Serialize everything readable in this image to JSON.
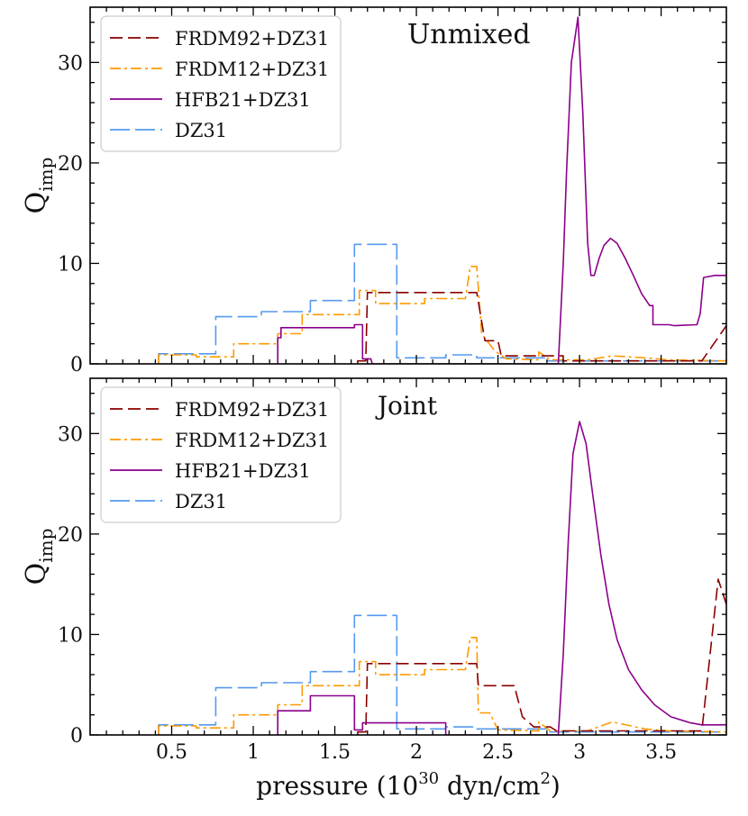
{
  "chart_data": {
    "type": "line",
    "xlabel": "pressure (10",
    "xlabel_exp": "30",
    "xlabel_unit": " dyn/cm",
    "xlabel_unit_exp": "2",
    "xlabel_close": ")",
    "ylabel_main": "Q",
    "ylabel_sub": "imp",
    "xlim": [
      0.0,
      3.9
    ],
    "ylim": [
      0,
      35.5
    ],
    "xticks": [
      0.5,
      1,
      1.5,
      2,
      2.5,
      3,
      3.5
    ],
    "xtick_labels": [
      "0.5",
      "1",
      "1.5",
      "2",
      "2.5",
      "3",
      "3.5"
    ],
    "yticks": [
      0,
      10,
      20,
      30
    ],
    "ytick_labels": [
      "0",
      "10",
      "20",
      "30"
    ],
    "styles": {
      "FRDM92+DZ31": {
        "color": "#8b0000",
        "dash": "14 6"
      },
      "FRDM12+DZ31": {
        "color": "#ff9900",
        "dash": "12 4 3 4"
      },
      "HFB21+DZ31": {
        "color": "#8b008b",
        "dash": ""
      },
      "DZ31": {
        "color": "#5599ee",
        "dash": "22 6"
      }
    },
    "panels": [
      {
        "title": "Unmixed",
        "legend": [
          "FRDM92+DZ31",
          "FRDM12+DZ31",
          "HFB21+DZ31",
          "DZ31"
        ],
        "series": [
          {
            "name": "DZ31",
            "points": [
              [
                0.42,
                0
              ],
              [
                0.42,
                1.0
              ],
              [
                0.77,
                1.0
              ],
              [
                0.77,
                4.7
              ],
              [
                1.05,
                4.7
              ],
              [
                1.05,
                5.2
              ],
              [
                1.35,
                5.2
              ],
              [
                1.35,
                6.3
              ],
              [
                1.62,
                6.3
              ],
              [
                1.62,
                11.9
              ],
              [
                1.88,
                11.9
              ],
              [
                1.88,
                0.6
              ],
              [
                2.18,
                0.6
              ],
              [
                2.18,
                0.9
              ],
              [
                2.37,
                0.9
              ],
              [
                2.37,
                0.6
              ],
              [
                2.8,
                0.6
              ],
              [
                2.8,
                0.3
              ],
              [
                3.9,
                0.3
              ]
            ]
          },
          {
            "name": "FRDM12+DZ31",
            "points": [
              [
                0.42,
                0
              ],
              [
                0.42,
                0.9
              ],
              [
                0.65,
                0.9
              ],
              [
                0.65,
                0.7
              ],
              [
                0.88,
                0.7
              ],
              [
                0.88,
                2.0
              ],
              [
                1.15,
                2.0
              ],
              [
                1.15,
                3.0
              ],
              [
                1.3,
                3.0
              ],
              [
                1.3,
                4.9
              ],
              [
                1.65,
                4.9
              ],
              [
                1.65,
                7.3
              ],
              [
                1.75,
                7.3
              ],
              [
                1.75,
                6.0
              ],
              [
                2.05,
                6.0
              ],
              [
                2.05,
                6.5
              ],
              [
                2.3,
                6.5
              ],
              [
                2.33,
                9.7
              ],
              [
                2.37,
                9.7
              ],
              [
                2.4,
                3.0
              ],
              [
                2.48,
                1.3
              ],
              [
                2.55,
                0.5
              ],
              [
                2.75,
                0.4
              ],
              [
                2.75,
                1.2
              ],
              [
                2.82,
                0.4
              ],
              [
                3.05,
                0.4
              ],
              [
                3.2,
                0.8
              ],
              [
                3.4,
                0.6
              ],
              [
                3.55,
                0.4
              ],
              [
                3.9,
                0.3
              ]
            ]
          },
          {
            "name": "FRDM92+DZ31",
            "points": [
              [
                1.64,
                0
              ],
              [
                1.64,
                0.3
              ],
              [
                1.69,
                0.3
              ],
              [
                1.7,
                7.1
              ],
              [
                2.37,
                7.1
              ],
              [
                2.42,
                2.3
              ],
              [
                2.5,
                2.3
              ],
              [
                2.52,
                0.8
              ],
              [
                2.9,
                0.8
              ],
              [
                2.9,
                0.3
              ],
              [
                3.75,
                0.3
              ],
              [
                3.9,
                3.8
              ]
            ]
          },
          {
            "name": "HFB21+DZ31",
            "points": [
              [
                1.15,
                0
              ],
              [
                1.15,
                2.6
              ],
              [
                1.17,
                2.6
              ],
              [
                1.17,
                3.6
              ],
              [
                1.62,
                3.6
              ],
              [
                1.62,
                3.9
              ],
              [
                1.67,
                3.9
              ],
              [
                1.67,
                0.5
              ],
              [
                1.72,
                0.5
              ],
              [
                1.73,
                0
              ],
              [
                2.87,
                0
              ],
              [
                2.9,
                10
              ],
              [
                2.92,
                19
              ],
              [
                2.95,
                30
              ],
              [
                2.99,
                34.5
              ],
              [
                3.02,
                25
              ],
              [
                3.05,
                12
              ],
              [
                3.07,
                8.8
              ],
              [
                3.09,
                8.8
              ],
              [
                3.12,
                10.5
              ],
              [
                3.15,
                11.8
              ],
              [
                3.19,
                12.5
              ],
              [
                3.23,
                12.0
              ],
              [
                3.28,
                10.5
              ],
              [
                3.33,
                8.8
              ],
              [
                3.38,
                7.0
              ],
              [
                3.43,
                5.8
              ],
              [
                3.45,
                5.8
              ],
              [
                3.45,
                3.9
              ],
              [
                3.55,
                3.9
              ],
              [
                3.58,
                3.8
              ],
              [
                3.72,
                3.9
              ],
              [
                3.74,
                5.0
              ],
              [
                3.76,
                8.6
              ],
              [
                3.83,
                8.8
              ],
              [
                3.9,
                8.8
              ]
            ]
          }
        ]
      },
      {
        "title": "Joint",
        "legend": [
          "FRDM92+DZ31",
          "FRDM12+DZ31",
          "HFB21+DZ31",
          "DZ31"
        ],
        "series": [
          {
            "name": "DZ31",
            "points": [
              [
                0.42,
                0
              ],
              [
                0.42,
                1.0
              ],
              [
                0.77,
                1.0
              ],
              [
                0.77,
                4.7
              ],
              [
                1.05,
                4.7
              ],
              [
                1.05,
                5.2
              ],
              [
                1.35,
                5.2
              ],
              [
                1.35,
                6.3
              ],
              [
                1.62,
                6.3
              ],
              [
                1.62,
                11.9
              ],
              [
                1.88,
                11.9
              ],
              [
                1.88,
                0.6
              ],
              [
                2.18,
                0.6
              ],
              [
                2.18,
                0.8
              ],
              [
                2.37,
                0.8
              ],
              [
                2.37,
                0.6
              ],
              [
                2.8,
                0.6
              ],
              [
                2.8,
                0.3
              ],
              [
                3.9,
                0.3
              ]
            ]
          },
          {
            "name": "FRDM12+DZ31",
            "points": [
              [
                0.42,
                0
              ],
              [
                0.42,
                0.9
              ],
              [
                0.65,
                0.9
              ],
              [
                0.65,
                0.7
              ],
              [
                0.88,
                0.7
              ],
              [
                0.88,
                2.0
              ],
              [
                1.15,
                2.0
              ],
              [
                1.15,
                3.0
              ],
              [
                1.3,
                3.0
              ],
              [
                1.3,
                4.9
              ],
              [
                1.65,
                4.9
              ],
              [
                1.65,
                7.3
              ],
              [
                1.75,
                7.3
              ],
              [
                1.75,
                6.0
              ],
              [
                2.05,
                6.0
              ],
              [
                2.05,
                6.5
              ],
              [
                2.3,
                6.5
              ],
              [
                2.33,
                9.7
              ],
              [
                2.37,
                9.7
              ],
              [
                2.38,
                2.2
              ],
              [
                2.45,
                2.2
              ],
              [
                2.5,
                0.5
              ],
              [
                2.75,
                0.4
              ],
              [
                2.75,
                1.3
              ],
              [
                2.82,
                0.4
              ],
              [
                3.05,
                0.4
              ],
              [
                3.2,
                1.3
              ],
              [
                3.4,
                0.6
              ],
              [
                3.55,
                0.4
              ],
              [
                3.9,
                0.3
              ]
            ]
          },
          {
            "name": "FRDM92+DZ31",
            "points": [
              [
                1.64,
                0
              ],
              [
                1.64,
                0.3
              ],
              [
                1.69,
                0.3
              ],
              [
                1.7,
                7.1
              ],
              [
                2.37,
                7.1
              ],
              [
                2.38,
                4.9
              ],
              [
                2.6,
                4.9
              ],
              [
                2.65,
                1.8
              ],
              [
                2.72,
                0.8
              ],
              [
                2.82,
                0.8
              ],
              [
                2.86,
                0.4
              ],
              [
                3.75,
                0.4
              ],
              [
                3.8,
                8
              ],
              [
                3.85,
                15.5
              ],
              [
                3.9,
                13
              ]
            ]
          },
          {
            "name": "HFB21+DZ31",
            "points": [
              [
                1.15,
                0
              ],
              [
                1.15,
                2.4
              ],
              [
                1.35,
                2.4
              ],
              [
                1.35,
                3.9
              ],
              [
                1.62,
                3.9
              ],
              [
                1.62,
                0.5
              ],
              [
                1.67,
                0.5
              ],
              [
                1.67,
                1.2
              ],
              [
                2.18,
                1.2
              ],
              [
                2.18,
                0
              ],
              [
                2.87,
                0
              ],
              [
                2.9,
                8
              ],
              [
                2.93,
                19
              ],
              [
                2.96,
                28
              ],
              [
                3.0,
                31.2
              ],
              [
                3.04,
                29
              ],
              [
                3.08,
                24
              ],
              [
                3.13,
                18
              ],
              [
                3.18,
                13
              ],
              [
                3.23,
                9.5
              ],
              [
                3.3,
                6.5
              ],
              [
                3.38,
                4.5
              ],
              [
                3.46,
                3.0
              ],
              [
                3.56,
                1.8
              ],
              [
                3.68,
                1.2
              ],
              [
                3.75,
                1.0
              ],
              [
                3.9,
                1.0
              ]
            ]
          }
        ]
      }
    ]
  }
}
